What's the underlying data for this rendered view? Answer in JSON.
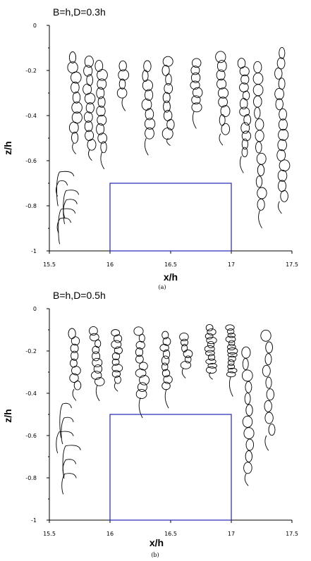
{
  "chart_data": [
    {
      "type": "line",
      "title": "B=h,D=0.3h",
      "caption": "(a)",
      "xlabel": "x/h",
      "ylabel": "z/h",
      "xlim": [
        15.5,
        17.5
      ],
      "ylim": [
        -1,
        0
      ],
      "xticks": [
        "15.5",
        "16",
        "16.5",
        "17",
        "17.5"
      ],
      "yticks": [
        "0",
        "-0.2",
        "-0.4",
        "-0.6",
        "-0.8",
        "-1"
      ],
      "obstacle": {
        "x": [
          16,
          17
        ],
        "z": [
          -1,
          -0.7
        ]
      },
      "columns": [
        {
          "x": 15.6,
          "z_top": -0.65,
          "z_bottom": -0.98,
          "loops": 0,
          "kind": "fall"
        },
        {
          "x": 15.7,
          "z_top": -0.12,
          "z_bottom": -0.52,
          "loops": 9,
          "kind": "loops"
        },
        {
          "x": 15.82,
          "z_top": -0.14,
          "z_bottom": -0.55,
          "loops": 10,
          "kind": "loops"
        },
        {
          "x": 15.92,
          "z_top": -0.16,
          "z_bottom": -0.56,
          "loops": 10,
          "kind": "loops"
        },
        {
          "x": 16.1,
          "z_top": -0.16,
          "z_bottom": -0.32,
          "loops": 4,
          "kind": "loops"
        },
        {
          "x": 16.3,
          "z_top": -0.16,
          "z_bottom": -0.5,
          "loops": 8,
          "kind": "loops"
        },
        {
          "x": 16.47,
          "z_top": -0.14,
          "z_bottom": -0.5,
          "loops": 9,
          "kind": "loops"
        },
        {
          "x": 16.7,
          "z_top": -0.15,
          "z_bottom": -0.38,
          "loops": 7,
          "kind": "loops"
        },
        {
          "x": 16.92,
          "z_top": -0.12,
          "z_bottom": -0.48,
          "loops": 9,
          "kind": "loops"
        },
        {
          "x": 17.1,
          "z_top": -0.15,
          "z_bottom": -0.58,
          "loops": 12,
          "kind": "loops"
        },
        {
          "x": 17.22,
          "z_top": -0.16,
          "z_bottom": -0.82,
          "loops": 13,
          "kind": "loops"
        },
        {
          "x": 17.4,
          "z_top": -0.1,
          "z_bottom": -0.78,
          "loops": 15,
          "kind": "loops"
        }
      ]
    },
    {
      "type": "line",
      "title": "B=h,D=0.5h",
      "caption": "(b)",
      "xlabel": "x/h",
      "ylabel": "z/h",
      "xlim": [
        15.5,
        17.5
      ],
      "ylim": [
        -1,
        0
      ],
      "xticks": [
        "15.5",
        "16",
        "16.5",
        "17",
        "17.5"
      ],
      "yticks": [
        "0",
        "-0.2",
        "-0.4",
        "-0.6",
        "-0.8",
        "-1"
      ],
      "obstacle": {
        "x": [
          16,
          17
        ],
        "z": [
          -1,
          -0.5
        ]
      },
      "columns": [
        {
          "x": 15.6,
          "z_top": -0.45,
          "z_bottom": -0.98,
          "loops": 0,
          "kind": "fall"
        },
        {
          "x": 15.7,
          "z_top": -0.1,
          "z_bottom": -0.38,
          "loops": 8,
          "kind": "loops"
        },
        {
          "x": 15.88,
          "z_top": -0.09,
          "z_bottom": -0.36,
          "loops": 9,
          "kind": "loops"
        },
        {
          "x": 16.05,
          "z_top": -0.1,
          "z_bottom": -0.35,
          "loops": 9,
          "kind": "loops"
        },
        {
          "x": 16.25,
          "z_top": -0.09,
          "z_bottom": -0.42,
          "loops": 10,
          "kind": "loops"
        },
        {
          "x": 16.45,
          "z_top": -0.11,
          "z_bottom": -0.38,
          "loops": 9,
          "kind": "loops"
        },
        {
          "x": 16.62,
          "z_top": -0.12,
          "z_bottom": -0.28,
          "loops": 6,
          "kind": "loops"
        },
        {
          "x": 16.82,
          "z_top": -0.08,
          "z_bottom": -0.3,
          "loops": 11,
          "kind": "loops"
        },
        {
          "x": 16.98,
          "z_top": -0.08,
          "z_bottom": -0.32,
          "loops": 13,
          "kind": "loops"
        },
        {
          "x": 17.12,
          "z_top": -0.18,
          "z_bottom": -0.78,
          "loops": 11,
          "kind": "loops"
        },
        {
          "x": 17.3,
          "z_top": -0.1,
          "z_bottom": -0.6,
          "loops": 9,
          "kind": "loops"
        }
      ]
    }
  ]
}
